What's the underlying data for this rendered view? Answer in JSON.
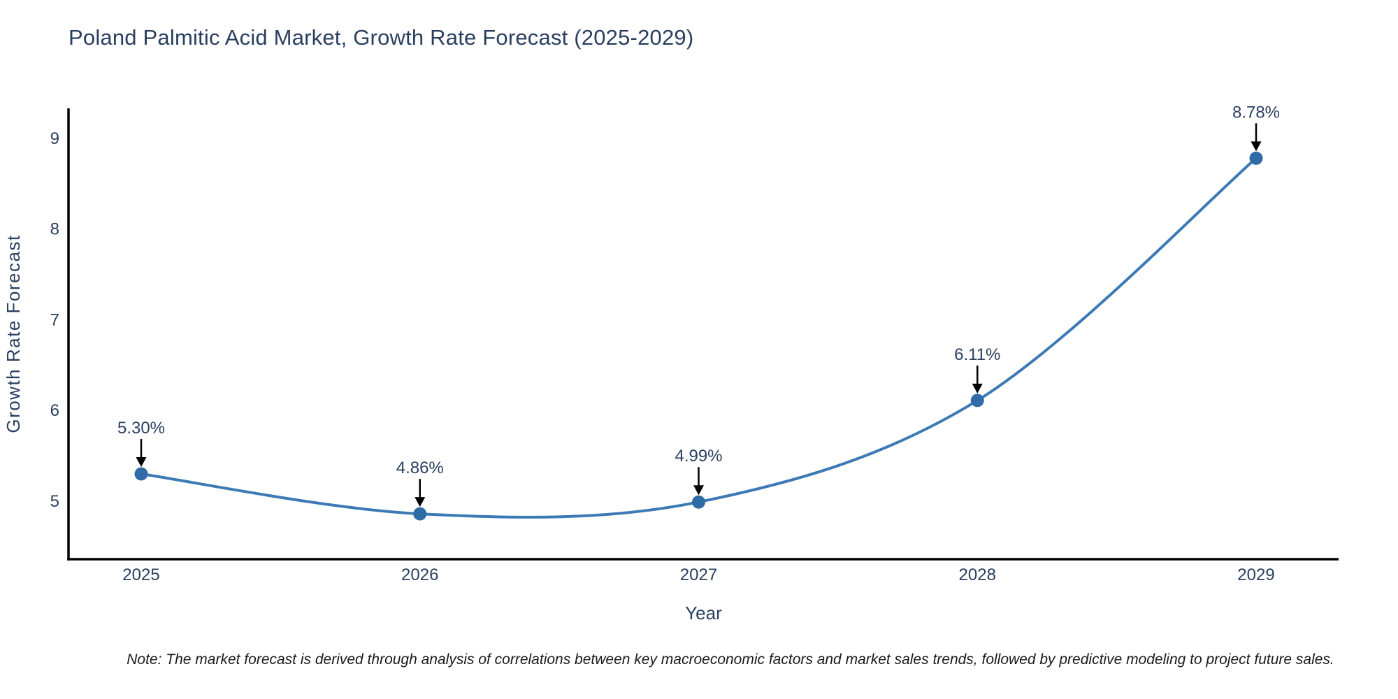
{
  "chart_data": {
    "type": "line",
    "title": "Poland Palmitic Acid Market, Growth Rate Forecast (2025-2029)",
    "x": [
      "2025",
      "2026",
      "2027",
      "2028",
      "2029"
    ],
    "series": [
      {
        "name": "Growth Rate Forecast",
        "values": [
          5.3,
          4.86,
          4.99,
          6.11,
          8.78
        ]
      }
    ],
    "point_labels": [
      "5.30%",
      "4.86%",
      "4.99%",
      "6.11%",
      "8.78%"
    ],
    "xlabel": "Year",
    "ylabel": "Growth Rate Forecast",
    "yticks": [
      5,
      6,
      7,
      8,
      9
    ],
    "ylim": [
      4.36,
      9.33
    ],
    "line_shape": "spline",
    "grid": false,
    "legend": "none",
    "colors": {
      "line": "#3d7ab5",
      "marker": "#2f6ca7",
      "axis": "#000000",
      "text": "#2a3f5f",
      "annotation_arrow": "#000000"
    }
  },
  "footnote": {
    "text": "Note: The market forecast is derived through analysis of correlations between key macroeconomic factors and market sales trends, followed by predictive modeling to project future sales."
  }
}
